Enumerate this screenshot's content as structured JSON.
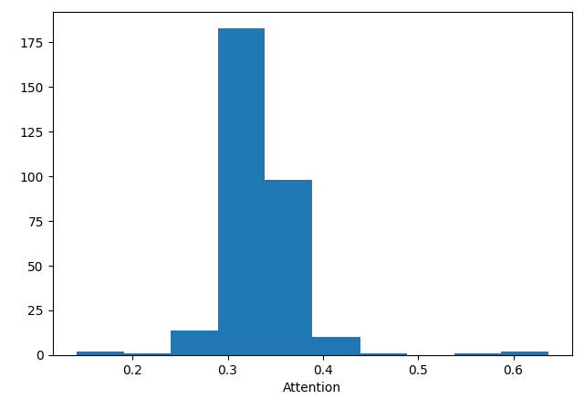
{
  "chart_data": {
    "type": "histogram",
    "x_label": "Attention",
    "bins": [
      0.141,
      0.191,
      0.24,
      0.29,
      0.339,
      0.389,
      0.439,
      0.488,
      0.538,
      0.587,
      0.637
    ],
    "values": [
      2,
      1,
      14,
      183,
      98,
      10,
      1,
      0,
      1,
      2
    ],
    "color": "#1f77b4",
    "xlim": [
      0.116,
      0.662
    ],
    "ylim": [
      0,
      192
    ],
    "xticks": [
      0.2,
      0.3,
      0.4,
      0.5,
      0.6
    ],
    "yticks": [
      0,
      25,
      50,
      75,
      100,
      125,
      150,
      175
    ],
    "grid": false
  }
}
